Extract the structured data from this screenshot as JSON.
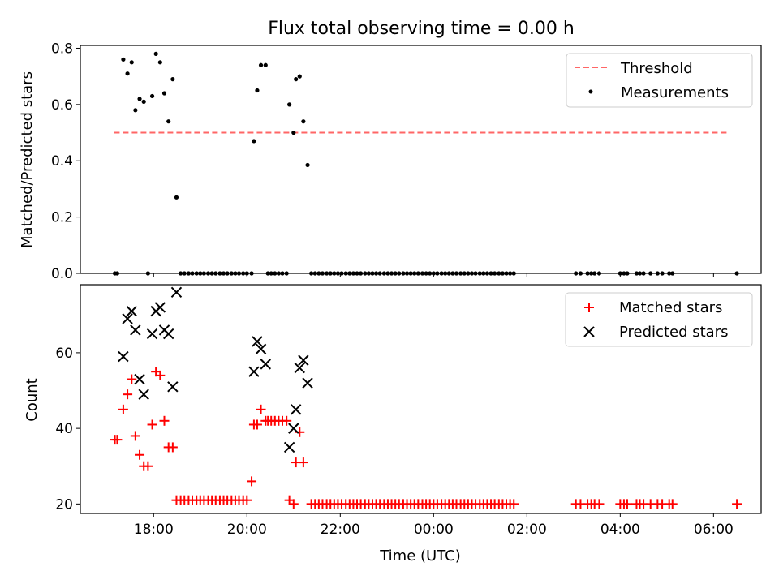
{
  "figure": {
    "title": "Flux total observing time = 0.00 h"
  },
  "chart_data": [
    {
      "type": "scatter",
      "title": "Flux total observing time = 0.00 h",
      "xlabel": "",
      "ylabel": "Matched/Predicted stars",
      "x_unit": "hours since 17:00 UTC",
      "xlim": [
        -0.57,
        14.02
      ],
      "ylim": [
        0,
        0.81
      ],
      "yticks": [
        0.0,
        0.2,
        0.4,
        0.6,
        0.8
      ],
      "ytick_labels": [
        "0.0",
        "0.2",
        "0.4",
        "0.6",
        "0.8"
      ],
      "legend_position": "upper right",
      "legend": [
        "Threshold",
        "Measurements"
      ],
      "threshold": {
        "name": "Threshold",
        "value": 0.5,
        "x_range": [
          0.15,
          13.35
        ],
        "color": "#ff6666",
        "style": "dashed"
      },
      "series": [
        {
          "name": "Measurements",
          "color": "#000000",
          "marker": "dot",
          "points": [
            [
              0.17,
              0.0
            ],
            [
              0.22,
              0.0
            ],
            [
              0.35,
              0.76
            ],
            [
              0.44,
              0.71
            ],
            [
              0.53,
              0.75
            ],
            [
              0.61,
              0.58
            ],
            [
              0.7,
              0.62
            ],
            [
              0.79,
              0.61
            ],
            [
              0.88,
              0.0
            ],
            [
              0.97,
              0.63
            ],
            [
              1.05,
              0.78
            ],
            [
              1.14,
              0.75
            ],
            [
              1.23,
              0.64
            ],
            [
              1.32,
              0.54
            ],
            [
              1.41,
              0.69
            ],
            [
              1.49,
              0.27
            ],
            [
              1.58,
              0.0
            ],
            [
              1.66,
              0.0
            ],
            [
              1.75,
              0.0
            ],
            [
              1.83,
              0.0
            ],
            [
              1.92,
              0.0
            ],
            [
              2.0,
              0.0
            ],
            [
              2.08,
              0.0
            ],
            [
              2.17,
              0.0
            ],
            [
              2.25,
              0.0
            ],
            [
              2.33,
              0.0
            ],
            [
              2.42,
              0.0
            ],
            [
              2.5,
              0.0
            ],
            [
              2.58,
              0.0
            ],
            [
              2.67,
              0.0
            ],
            [
              2.75,
              0.0
            ],
            [
              2.83,
              0.0
            ],
            [
              2.92,
              0.0
            ],
            [
              3.0,
              0.0
            ],
            [
              3.1,
              0.0
            ],
            [
              3.15,
              0.47
            ],
            [
              3.22,
              0.65
            ],
            [
              3.3,
              0.74
            ],
            [
              3.4,
              0.74
            ],
            [
              3.45,
              0.0
            ],
            [
              3.52,
              0.0
            ],
            [
              3.6,
              0.0
            ],
            [
              3.68,
              0.0
            ],
            [
              3.76,
              0.0
            ],
            [
              3.85,
              0.0
            ],
            [
              3.91,
              0.6
            ],
            [
              4.0,
              0.5
            ],
            [
              4.05,
              0.69
            ],
            [
              4.13,
              0.7
            ],
            [
              4.21,
              0.54
            ],
            [
              4.3,
              0.385
            ],
            [
              4.38,
              0.0
            ],
            [
              4.46,
              0.0
            ],
            [
              4.54,
              0.0
            ],
            [
              4.62,
              0.0
            ],
            [
              4.71,
              0.0
            ],
            [
              4.79,
              0.0
            ],
            [
              4.87,
              0.0
            ],
            [
              4.95,
              0.0
            ],
            [
              5.03,
              0.0
            ],
            [
              5.12,
              0.0
            ],
            [
              5.2,
              0.0
            ],
            [
              5.28,
              0.0
            ],
            [
              5.36,
              0.0
            ],
            [
              5.44,
              0.0
            ],
            [
              5.53,
              0.0
            ],
            [
              5.61,
              0.0
            ],
            [
              5.69,
              0.0
            ],
            [
              5.77,
              0.0
            ],
            [
              5.85,
              0.0
            ],
            [
              5.94,
              0.0
            ],
            [
              6.02,
              0.0
            ],
            [
              6.1,
              0.0
            ],
            [
              6.18,
              0.0
            ],
            [
              6.26,
              0.0
            ],
            [
              6.35,
              0.0
            ],
            [
              6.43,
              0.0
            ],
            [
              6.51,
              0.0
            ],
            [
              6.59,
              0.0
            ],
            [
              6.67,
              0.0
            ],
            [
              6.76,
              0.0
            ],
            [
              6.84,
              0.0
            ],
            [
              6.92,
              0.0
            ],
            [
              7.0,
              0.0
            ],
            [
              7.08,
              0.0
            ],
            [
              7.17,
              0.0
            ],
            [
              7.25,
              0.0
            ],
            [
              7.33,
              0.0
            ],
            [
              7.41,
              0.0
            ],
            [
              7.49,
              0.0
            ],
            [
              7.58,
              0.0
            ],
            [
              7.66,
              0.0
            ],
            [
              7.74,
              0.0
            ],
            [
              7.82,
              0.0
            ],
            [
              7.9,
              0.0
            ],
            [
              7.99,
              0.0
            ],
            [
              8.07,
              0.0
            ],
            [
              8.15,
              0.0
            ],
            [
              8.23,
              0.0
            ],
            [
              8.31,
              0.0
            ],
            [
              8.4,
              0.0
            ],
            [
              8.48,
              0.0
            ],
            [
              8.56,
              0.0
            ],
            [
              8.64,
              0.0
            ],
            [
              8.72,
              0.0
            ],
            [
              10.05,
              0.0
            ],
            [
              10.15,
              0.0
            ],
            [
              10.3,
              0.0
            ],
            [
              10.38,
              0.0
            ],
            [
              10.45,
              0.0
            ],
            [
              10.55,
              0.0
            ],
            [
              11.0,
              0.0
            ],
            [
              11.08,
              0.0
            ],
            [
              11.15,
              0.0
            ],
            [
              11.35,
              0.0
            ],
            [
              11.42,
              0.0
            ],
            [
              11.5,
              0.0
            ],
            [
              11.65,
              0.0
            ],
            [
              11.8,
              0.0
            ],
            [
              11.9,
              0.0
            ],
            [
              12.05,
              0.0
            ],
            [
              12.12,
              0.0
            ],
            [
              13.5,
              0.0
            ]
          ]
        }
      ]
    },
    {
      "type": "scatter",
      "title": "",
      "xlabel": "Time (UTC)",
      "ylabel": "Count",
      "x_unit": "hours since 17:00 UTC",
      "xlim": [
        -0.57,
        14.02
      ],
      "ylim": [
        17.5,
        78.0
      ],
      "yticks": [
        20,
        40,
        60
      ],
      "ytick_labels": [
        "20",
        "40",
        "60"
      ],
      "xticks": [
        1,
        3,
        5,
        7,
        9,
        11,
        13
      ],
      "xtick_labels": [
        "18:00",
        "20:00",
        "22:00",
        "00:00",
        "02:00",
        "04:00",
        "06:00"
      ],
      "legend_position": "upper right",
      "legend": [
        "Matched stars",
        "Predicted stars"
      ],
      "series": [
        {
          "name": "Matched stars",
          "color": "#ff0000",
          "marker": "plus",
          "points": [
            [
              0.17,
              37
            ],
            [
              0.22,
              37
            ],
            [
              0.35,
              45
            ],
            [
              0.44,
              49
            ],
            [
              0.53,
              53
            ],
            [
              0.61,
              38
            ],
            [
              0.7,
              33
            ],
            [
              0.79,
              30
            ],
            [
              0.88,
              30
            ],
            [
              0.97,
              41
            ],
            [
              1.05,
              55
            ],
            [
              1.14,
              54
            ],
            [
              1.23,
              42
            ],
            [
              1.32,
              35
            ],
            [
              1.41,
              35
            ],
            [
              1.49,
              21
            ],
            [
              1.58,
              21
            ],
            [
              1.66,
              21
            ],
            [
              1.75,
              21
            ],
            [
              1.83,
              21
            ],
            [
              1.92,
              21
            ],
            [
              2.0,
              21
            ],
            [
              2.08,
              21
            ],
            [
              2.17,
              21
            ],
            [
              2.25,
              21
            ],
            [
              2.33,
              21
            ],
            [
              2.42,
              21
            ],
            [
              2.5,
              21
            ],
            [
              2.58,
              21
            ],
            [
              2.67,
              21
            ],
            [
              2.75,
              21
            ],
            [
              2.83,
              21
            ],
            [
              2.92,
              21
            ],
            [
              3.0,
              21
            ],
            [
              3.1,
              26
            ],
            [
              3.15,
              41
            ],
            [
              3.22,
              41
            ],
            [
              3.3,
              45
            ],
            [
              3.4,
              42
            ],
            [
              3.45,
              42
            ],
            [
              3.52,
              42
            ],
            [
              3.6,
              42
            ],
            [
              3.68,
              42
            ],
            [
              3.76,
              42
            ],
            [
              3.85,
              42
            ],
            [
              3.91,
              21
            ],
            [
              4.0,
              20
            ],
            [
              4.05,
              31
            ],
            [
              4.13,
              39
            ],
            [
              4.21,
              31
            ],
            [
              4.38,
              20
            ],
            [
              4.46,
              20
            ],
            [
              4.54,
              20
            ],
            [
              4.62,
              20
            ],
            [
              4.71,
              20
            ],
            [
              4.79,
              20
            ],
            [
              4.87,
              20
            ],
            [
              4.95,
              20
            ],
            [
              5.03,
              20
            ],
            [
              5.12,
              20
            ],
            [
              5.2,
              20
            ],
            [
              5.28,
              20
            ],
            [
              5.36,
              20
            ],
            [
              5.44,
              20
            ],
            [
              5.53,
              20
            ],
            [
              5.61,
              20
            ],
            [
              5.69,
              20
            ],
            [
              5.77,
              20
            ],
            [
              5.85,
              20
            ],
            [
              5.94,
              20
            ],
            [
              6.02,
              20
            ],
            [
              6.1,
              20
            ],
            [
              6.18,
              20
            ],
            [
              6.26,
              20
            ],
            [
              6.35,
              20
            ],
            [
              6.43,
              20
            ],
            [
              6.51,
              20
            ],
            [
              6.59,
              20
            ],
            [
              6.67,
              20
            ],
            [
              6.76,
              20
            ],
            [
              6.84,
              20
            ],
            [
              6.92,
              20
            ],
            [
              7.0,
              20
            ],
            [
              7.08,
              20
            ],
            [
              7.17,
              20
            ],
            [
              7.25,
              20
            ],
            [
              7.33,
              20
            ],
            [
              7.41,
              20
            ],
            [
              7.49,
              20
            ],
            [
              7.58,
              20
            ],
            [
              7.66,
              20
            ],
            [
              7.74,
              20
            ],
            [
              7.82,
              20
            ],
            [
              7.9,
              20
            ],
            [
              7.99,
              20
            ],
            [
              8.07,
              20
            ],
            [
              8.15,
              20
            ],
            [
              8.23,
              20
            ],
            [
              8.31,
              20
            ],
            [
              8.4,
              20
            ],
            [
              8.48,
              20
            ],
            [
              8.56,
              20
            ],
            [
              8.64,
              20
            ],
            [
              8.72,
              20
            ],
            [
              10.05,
              20
            ],
            [
              10.15,
              20
            ],
            [
              10.3,
              20
            ],
            [
              10.38,
              20
            ],
            [
              10.45,
              20
            ],
            [
              10.55,
              20
            ],
            [
              11.0,
              20
            ],
            [
              11.08,
              20
            ],
            [
              11.15,
              20
            ],
            [
              11.35,
              20
            ],
            [
              11.42,
              20
            ],
            [
              11.5,
              20
            ],
            [
              11.65,
              20
            ],
            [
              11.8,
              20
            ],
            [
              11.9,
              20
            ],
            [
              12.05,
              20
            ],
            [
              12.12,
              20
            ],
            [
              13.5,
              20
            ]
          ]
        },
        {
          "name": "Predicted stars",
          "color": "#000000",
          "marker": "x",
          "points": [
            [
              0.35,
              59
            ],
            [
              0.44,
              69
            ],
            [
              0.53,
              71
            ],
            [
              0.61,
              66
            ],
            [
              0.7,
              53
            ],
            [
              0.79,
              49
            ],
            [
              0.97,
              65
            ],
            [
              1.05,
              71
            ],
            [
              1.14,
              72
            ],
            [
              1.23,
              66
            ],
            [
              1.32,
              65
            ],
            [
              1.41,
              51
            ],
            [
              1.49,
              76
            ],
            [
              3.15,
              55
            ],
            [
              3.22,
              63
            ],
            [
              3.3,
              61
            ],
            [
              3.4,
              57
            ],
            [
              3.91,
              35
            ],
            [
              4.0,
              40
            ],
            [
              4.05,
              45
            ],
            [
              4.13,
              56
            ],
            [
              4.21,
              58
            ],
            [
              4.3,
              52
            ]
          ]
        }
      ]
    }
  ]
}
